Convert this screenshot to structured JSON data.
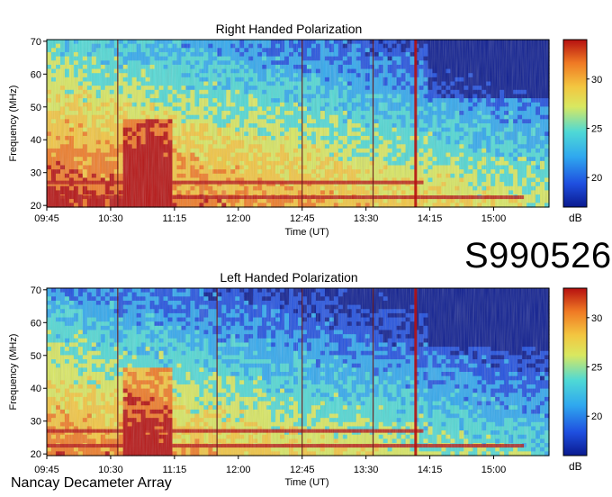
{
  "observation_id": "S990526",
  "footer": "Nancay Decameter Array",
  "colors": {
    "colormap": [
      "#0a1a8f",
      "#1f4fe0",
      "#2fa8ef",
      "#4fd9d5",
      "#d9e860",
      "#f3c640",
      "#f07a24",
      "#b61010"
    ],
    "frame": "#000000"
  },
  "chart_data": [
    {
      "type": "heatmap",
      "title": "Right Handed Polarization",
      "xlabel": "Time (UT)",
      "ylabel": "Frequency (MHz)",
      "x_ticks": [
        "09:45",
        "10:30",
        "11:15",
        "12:00",
        "12:45",
        "13:30",
        "14:15",
        "15:00"
      ],
      "y_ticks": [
        20,
        30,
        40,
        50,
        60,
        70
      ],
      "ylim": [
        19.5,
        70.5
      ],
      "colorbar": {
        "label": "dB",
        "ticks": [
          20,
          25,
          30
        ],
        "range": [
          17,
          34
        ]
      },
      "bursts_ut": [
        "10:35",
        "12:45",
        "13:35",
        "14:05"
      ]
    },
    {
      "type": "heatmap",
      "title": "Left Handed Polarization",
      "xlabel": "Time (UT)",
      "ylabel": "Frequency (MHz)",
      "x_ticks": [
        "09:45",
        "10:30",
        "11:15",
        "12:00",
        "12:45",
        "13:30",
        "14:15",
        "15:00"
      ],
      "y_ticks": [
        20,
        30,
        40,
        50,
        60,
        70
      ],
      "ylim": [
        19.5,
        70.5
      ],
      "colorbar": {
        "label": "dB",
        "ticks": [
          20,
          25,
          30
        ],
        "range": [
          16,
          33
        ]
      },
      "bursts_ut": [
        "10:35",
        "11:45",
        "12:45",
        "13:35",
        "14:05"
      ]
    }
  ]
}
